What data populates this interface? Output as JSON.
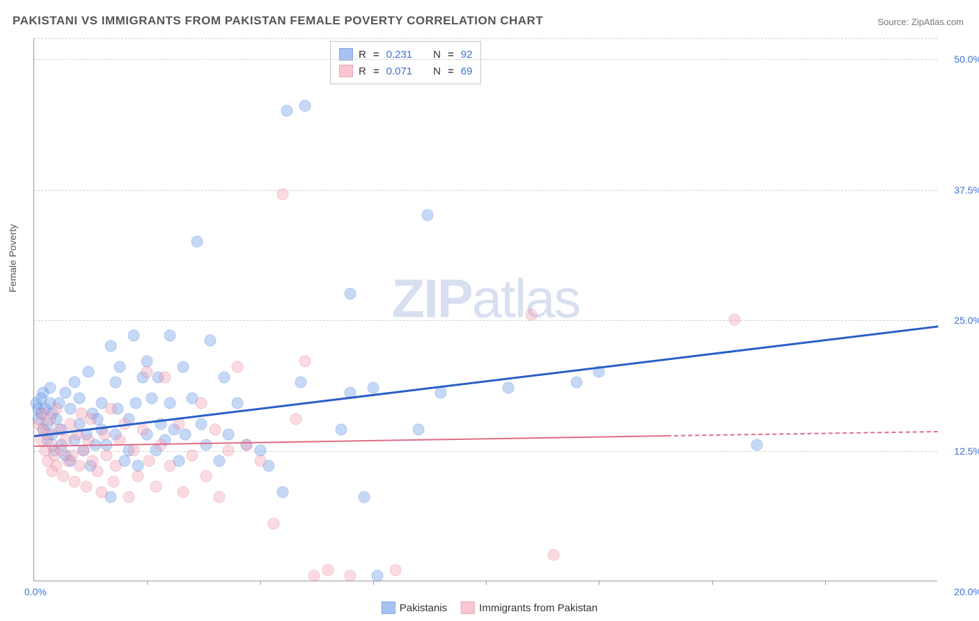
{
  "title": "PAKISTANI VS IMMIGRANTS FROM PAKISTAN FEMALE POVERTY CORRELATION CHART",
  "source": "Source: ZipAtlas.com",
  "ylabel": "Female Poverty",
  "watermark_a": "ZIP",
  "watermark_b": "atlas",
  "chart": {
    "type": "scatter",
    "xlim": [
      0,
      20
    ],
    "ylim": [
      0,
      52
    ],
    "x_tick_label_left": "0.0%",
    "x_tick_label_right": "20.0%",
    "x_minor_ticks": [
      2.5,
      5,
      7.5,
      10,
      12.5,
      15,
      17.5
    ],
    "y_ticks": [
      {
        "v": 12.5,
        "label": "12.5%"
      },
      {
        "v": 25.0,
        "label": "25.0%"
      },
      {
        "v": 37.5,
        "label": "37.5%"
      },
      {
        "v": 50.0,
        "label": "50.0%"
      }
    ],
    "y_top_grid": 52,
    "background_color": "#ffffff",
    "grid_color": "#d0d0d0",
    "marker_radius": 8.5,
    "marker_fill_opacity": 0.38,
    "marker_stroke_opacity": 0.9,
    "series": [
      {
        "name": "Pakistanis",
        "color_fill": "#6a9be8",
        "color_stroke": "#3b6fd4",
        "R": "0.231",
        "N": "92",
        "trend": {
          "x1": 0,
          "y1": 14.0,
          "x2": 20,
          "y2": 24.5,
          "color": "#2a5ec8",
          "width": 2.5
        },
        "points": [
          [
            0.05,
            17.0
          ],
          [
            0.1,
            15.5
          ],
          [
            0.1,
            16.5
          ],
          [
            0.15,
            16.0
          ],
          [
            0.15,
            17.5
          ],
          [
            0.2,
            14.5
          ],
          [
            0.2,
            18.0
          ],
          [
            0.25,
            16.5
          ],
          [
            0.3,
            15.0
          ],
          [
            0.3,
            13.5
          ],
          [
            0.35,
            17.0
          ],
          [
            0.35,
            18.5
          ],
          [
            0.4,
            14.0
          ],
          [
            0.4,
            16.0
          ],
          [
            0.45,
            12.5
          ],
          [
            0.5,
            15.5
          ],
          [
            0.55,
            17.0
          ],
          [
            0.6,
            14.5
          ],
          [
            0.6,
            13.0
          ],
          [
            0.7,
            12.0
          ],
          [
            0.7,
            18.0
          ],
          [
            0.8,
            11.5
          ],
          [
            0.8,
            16.5
          ],
          [
            0.9,
            19.0
          ],
          [
            0.9,
            13.5
          ],
          [
            1.0,
            15.0
          ],
          [
            1.0,
            17.5
          ],
          [
            1.1,
            12.5
          ],
          [
            1.15,
            14.0
          ],
          [
            1.2,
            20.0
          ],
          [
            1.25,
            11.0
          ],
          [
            1.3,
            16.0
          ],
          [
            1.35,
            13.0
          ],
          [
            1.4,
            15.5
          ],
          [
            1.5,
            14.5
          ],
          [
            1.5,
            17.0
          ],
          [
            1.6,
            13.0
          ],
          [
            1.7,
            8.0
          ],
          [
            1.7,
            22.5
          ],
          [
            1.8,
            19.0
          ],
          [
            1.8,
            14.0
          ],
          [
            1.85,
            16.5
          ],
          [
            1.9,
            20.5
          ],
          [
            2.0,
            11.5
          ],
          [
            2.1,
            15.5
          ],
          [
            2.1,
            12.5
          ],
          [
            2.2,
            23.5
          ],
          [
            2.25,
            17.0
          ],
          [
            2.3,
            11.0
          ],
          [
            2.4,
            19.5
          ],
          [
            2.5,
            14.0
          ],
          [
            2.5,
            21.0
          ],
          [
            2.6,
            17.5
          ],
          [
            2.7,
            12.5
          ],
          [
            2.75,
            19.5
          ],
          [
            2.8,
            15.0
          ],
          [
            2.9,
            13.5
          ],
          [
            3.0,
            23.5
          ],
          [
            3.0,
            17.0
          ],
          [
            3.1,
            14.5
          ],
          [
            3.2,
            11.5
          ],
          [
            3.3,
            20.5
          ],
          [
            3.35,
            14.0
          ],
          [
            3.5,
            17.5
          ],
          [
            3.6,
            32.5
          ],
          [
            3.7,
            15.0
          ],
          [
            3.8,
            13.0
          ],
          [
            3.9,
            23.0
          ],
          [
            4.1,
            11.5
          ],
          [
            4.2,
            19.5
          ],
          [
            4.3,
            14.0
          ],
          [
            4.5,
            17.0
          ],
          [
            4.7,
            13.0
          ],
          [
            5.0,
            12.5
          ],
          [
            5.2,
            11.0
          ],
          [
            5.5,
            8.5
          ],
          [
            5.6,
            45.0
          ],
          [
            5.9,
            19.0
          ],
          [
            6.0,
            45.5
          ],
          [
            6.8,
            14.5
          ],
          [
            7.0,
            27.5
          ],
          [
            7.0,
            18.0
          ],
          [
            7.3,
            8.0
          ],
          [
            7.5,
            18.5
          ],
          [
            7.6,
            0.5
          ],
          [
            8.5,
            14.5
          ],
          [
            8.7,
            35.0
          ],
          [
            9.0,
            18.0
          ],
          [
            10.5,
            18.5
          ],
          [
            12.0,
            19.0
          ],
          [
            12.5,
            20.0
          ],
          [
            16.0,
            13.0
          ]
        ]
      },
      {
        "name": "Immigrants from Pakistan",
        "color_fill": "#f5a3b5",
        "color_stroke": "#e06b85",
        "R": "0.071",
        "N": "69",
        "trend": {
          "x1": 0,
          "y1": 13.0,
          "x2": 14,
          "y2": 14.0,
          "color": "#e06b85",
          "width": 2
        },
        "trend_ext": {
          "x1": 14,
          "y1": 14.0,
          "x2": 20,
          "y2": 14.4,
          "color": "#e06b85",
          "width": 2
        },
        "points": [
          [
            0.1,
            15.0
          ],
          [
            0.15,
            13.5
          ],
          [
            0.2,
            14.5
          ],
          [
            0.2,
            16.0
          ],
          [
            0.25,
            12.5
          ],
          [
            0.3,
            11.5
          ],
          [
            0.3,
            14.0
          ],
          [
            0.35,
            15.5
          ],
          [
            0.4,
            13.0
          ],
          [
            0.4,
            10.5
          ],
          [
            0.45,
            12.0
          ],
          [
            0.5,
            11.0
          ],
          [
            0.5,
            16.5
          ],
          [
            0.55,
            14.5
          ],
          [
            0.6,
            12.5
          ],
          [
            0.65,
            10.0
          ],
          [
            0.7,
            13.5
          ],
          [
            0.75,
            11.5
          ],
          [
            0.8,
            15.0
          ],
          [
            0.85,
            12.0
          ],
          [
            0.9,
            9.5
          ],
          [
            0.95,
            14.0
          ],
          [
            1.0,
            11.0
          ],
          [
            1.05,
            16.0
          ],
          [
            1.1,
            12.5
          ],
          [
            1.15,
            9.0
          ],
          [
            1.2,
            13.5
          ],
          [
            1.25,
            15.5
          ],
          [
            1.3,
            11.5
          ],
          [
            1.4,
            10.5
          ],
          [
            1.5,
            8.5
          ],
          [
            1.55,
            14.0
          ],
          [
            1.6,
            12.0
          ],
          [
            1.7,
            16.5
          ],
          [
            1.75,
            9.5
          ],
          [
            1.8,
            11.0
          ],
          [
            1.9,
            13.5
          ],
          [
            2.0,
            15.0
          ],
          [
            2.1,
            8.0
          ],
          [
            2.2,
            12.5
          ],
          [
            2.3,
            10.0
          ],
          [
            2.4,
            14.5
          ],
          [
            2.5,
            20.0
          ],
          [
            2.55,
            11.5
          ],
          [
            2.7,
            9.0
          ],
          [
            2.8,
            13.0
          ],
          [
            2.9,
            19.5
          ],
          [
            3.0,
            11.0
          ],
          [
            3.2,
            15.0
          ],
          [
            3.3,
            8.5
          ],
          [
            3.5,
            12.0
          ],
          [
            3.7,
            17.0
          ],
          [
            3.8,
            10.0
          ],
          [
            4.0,
            14.5
          ],
          [
            4.1,
            8.0
          ],
          [
            4.3,
            12.5
          ],
          [
            4.5,
            20.5
          ],
          [
            4.7,
            13.0
          ],
          [
            5.0,
            11.5
          ],
          [
            5.3,
            5.5
          ],
          [
            5.5,
            37.0
          ],
          [
            5.8,
            15.5
          ],
          [
            6.0,
            21.0
          ],
          [
            6.2,
            0.5
          ],
          [
            6.5,
            1.0
          ],
          [
            7.0,
            0.5
          ],
          [
            8.0,
            1.0
          ],
          [
            11.0,
            25.5
          ],
          [
            11.5,
            2.5
          ],
          [
            15.5,
            25.0
          ]
        ]
      }
    ]
  },
  "legend": {
    "series1": "Pakistanis",
    "series2": "Immigrants from Pakistan"
  }
}
